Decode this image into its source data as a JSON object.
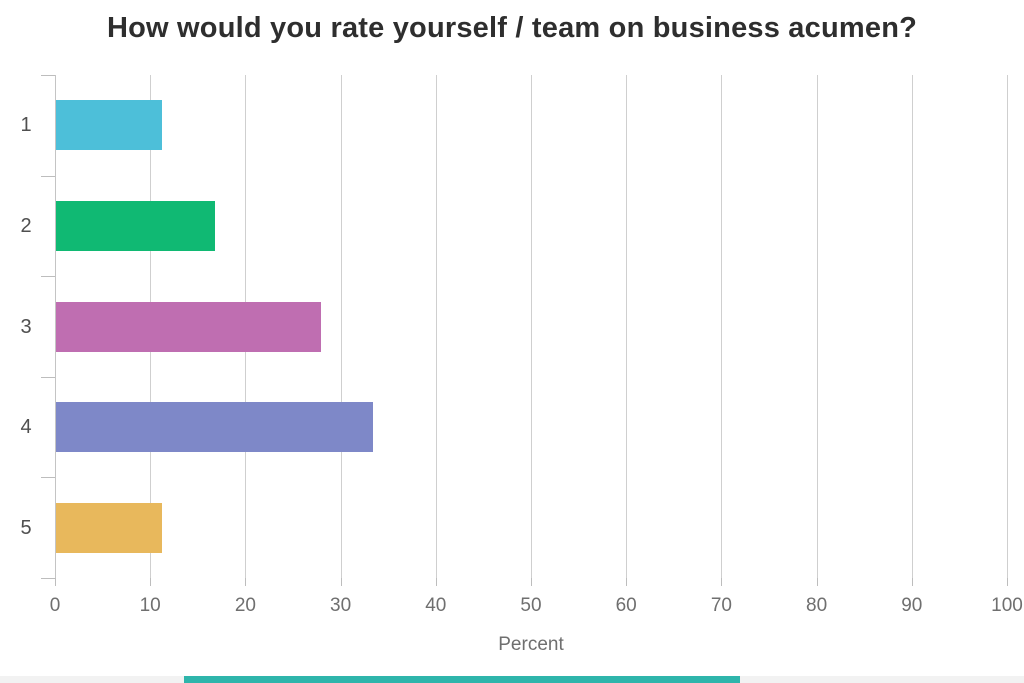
{
  "title": "How would you rate yourself / team on business acumen?",
  "chart_data": {
    "type": "bar",
    "orientation": "horizontal",
    "title": "How would you rate yourself / team on business acumen?",
    "categories": [
      "1",
      "2",
      "3",
      "4",
      "5"
    ],
    "values": [
      11.1,
      16.7,
      27.8,
      33.3,
      11.1
    ],
    "bar_colors": [
      "#4dbfd9",
      "#10b973",
      "#bf6eb1",
      "#7e88c8",
      "#e8b85c"
    ],
    "xlabel": "Percent",
    "ylabel": "",
    "xlim": [
      0,
      100
    ],
    "x_ticks": [
      0,
      10,
      20,
      30,
      40,
      50,
      60,
      70,
      80,
      90,
      100
    ],
    "grid": true,
    "legend": false
  },
  "scrollbar": {
    "thumb_color": "#2eb5ab",
    "track_color": "#f2f2f2"
  }
}
